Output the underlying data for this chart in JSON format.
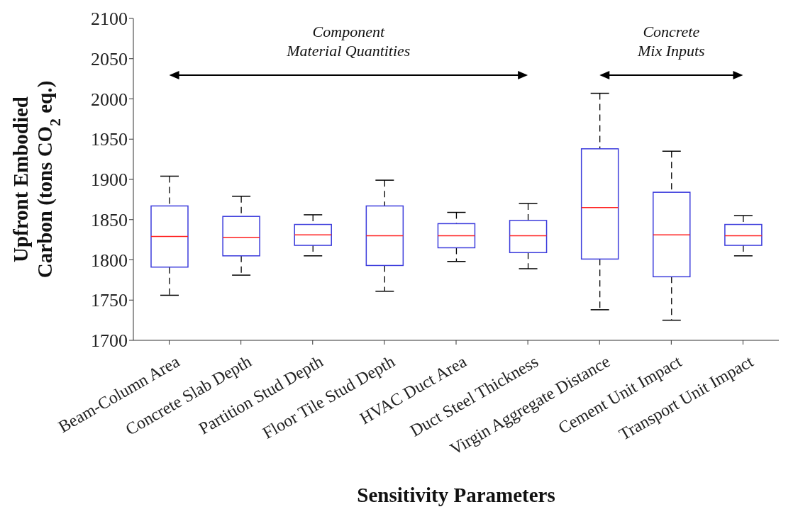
{
  "chart_data": {
    "type": "box",
    "xlabel": "Sensitivity Parameters",
    "ylabel": "Upfront Embodied\nCarbon (tons CO$_{2}$ eq.)",
    "categories": [
      "Beam-Column Area",
      "Concrete Slab Depth",
      "Partition Stud Depth",
      "Floor Tile Stud Depth",
      "HVAC Duct Area",
      "Duct Steel Thickness",
      "Virgin Aggregate Distance",
      "Cement Unit Impact",
      "Transport Unit Impact"
    ],
    "series": [
      {
        "color": "#3c3cdc",
        "boxes": [
          {
            "low": 1756,
            "q1": 1791,
            "median": 1829,
            "q3": 1867,
            "high": 1904
          },
          {
            "low": 1781,
            "q1": 1805,
            "median": 1828,
            "q3": 1854,
            "high": 1879
          },
          {
            "low": 1805,
            "q1": 1818,
            "median": 1831,
            "q3": 1844,
            "high": 1856
          },
          {
            "low": 1761,
            "q1": 1793,
            "median": 1830,
            "q3": 1867,
            "high": 1899
          },
          {
            "low": 1798,
            "q1": 1815,
            "median": 1830,
            "q3": 1845,
            "high": 1859
          },
          {
            "low": 1789,
            "q1": 1809,
            "median": 1830,
            "q3": 1849,
            "high": 1870
          },
          {
            "low": 1738,
            "q1": 1801,
            "median": 1865,
            "q3": 1938,
            "high": 2007
          },
          {
            "low": 1725,
            "q1": 1779,
            "median": 1831,
            "q3": 1884,
            "high": 1935
          },
          {
            "low": 1805,
            "q1": 1818,
            "median": 1830,
            "q3": 1844,
            "high": 1855
          }
        ]
      }
    ],
    "ylim": [
      1700,
      2100
    ],
    "yticks": [
      1700,
      1750,
      1800,
      1850,
      1900,
      1950,
      2000,
      2050,
      2100
    ],
    "annotations": [
      "Component\nMaterial Quantities",
      "Concrete\nMix Inputs"
    ],
    "grid": false,
    "legend": false
  }
}
